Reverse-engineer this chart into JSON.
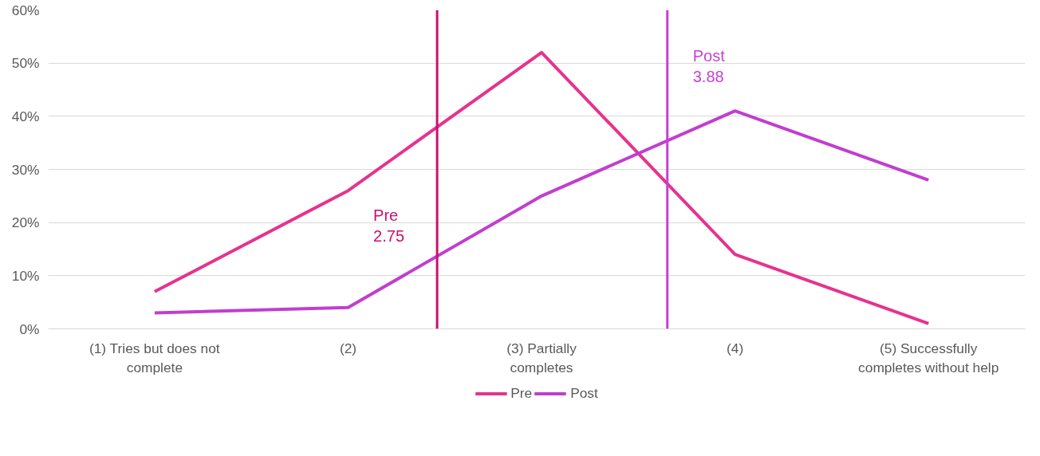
{
  "chart_data": {
    "type": "line",
    "x": [
      1,
      2,
      3,
      4,
      5
    ],
    "xlim": [
      0.45,
      5.5
    ],
    "xticks": [
      {
        "value": 1,
        "label": "(1) Tries but does not complete"
      },
      {
        "value": 2,
        "label": "(2)"
      },
      {
        "value": 3,
        "label": "(3) Partially completes"
      },
      {
        "value": 4,
        "label": "(4)"
      },
      {
        "value": 5,
        "label": "(5) Successfully completes without help"
      }
    ],
    "series": [
      {
        "name": "Pre",
        "color": "#e5338f",
        "values": [
          7,
          26,
          52,
          14,
          1
        ]
      },
      {
        "name": "Post",
        "color": "#c13ecf",
        "values": [
          3,
          4,
          25,
          41,
          28
        ]
      }
    ],
    "ylim": [
      0,
      60
    ],
    "yticks": [
      {
        "value": 0,
        "label": "0%"
      },
      {
        "value": 10,
        "label": "10%"
      },
      {
        "value": 20,
        "label": "20%"
      },
      {
        "value": 30,
        "label": "30%"
      },
      {
        "value": 40,
        "label": "40%"
      },
      {
        "value": 50,
        "label": "50%"
      },
      {
        "value": 60,
        "label": "60%"
      }
    ],
    "ref_lines": [
      {
        "axis": "x",
        "value": 2.46,
        "label": "Pre 2.75",
        "color": "#c8106e"
      },
      {
        "axis": "x",
        "value": 3.65,
        "label": "Post 3.88",
        "color": "#c93fd6"
      }
    ],
    "grid": "y",
    "legend": "bottom",
    "marker": "none",
    "line_style": "solid"
  }
}
